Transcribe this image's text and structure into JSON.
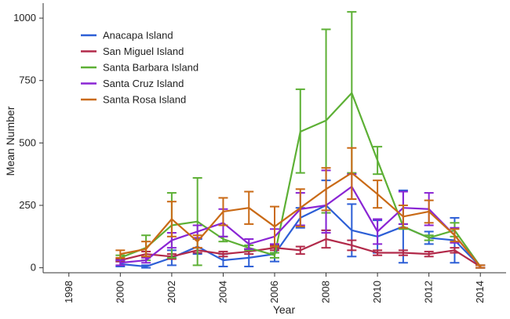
{
  "chart_data": {
    "type": "line",
    "xlabel": "Year",
    "ylabel": "Mean Number",
    "xlim": [
      1997,
      2015
    ],
    "ylim": [
      -20,
      1060
    ],
    "x_ticks": [
      1998,
      2000,
      2002,
      2004,
      2006,
      2008,
      2010,
      2012,
      2014
    ],
    "y_ticks": [
      0,
      250,
      500,
      750,
      1000
    ],
    "x_tick_labels": [
      "1998",
      "2000",
      "2002",
      "2004",
      "2006",
      "2008",
      "2010",
      "2012",
      "2014"
    ],
    "y_tick_labels": [
      "0",
      "250",
      "500",
      "750",
      "1000"
    ],
    "grid": false,
    "legend_position": "top-left",
    "error_bars": true,
    "series": [
      {
        "name": "Anacapa Island",
        "color": "#2d5fd6",
        "x": [
          2000,
          2001,
          2002,
          2003,
          2004,
          2005,
          2006,
          2007,
          2008,
          2009,
          2010,
          2011,
          2012,
          2013,
          2014
        ],
        "y": [
          15,
          5,
          40,
          85,
          30,
          40,
          55,
          200,
          250,
          150,
          125,
          165,
          120,
          110,
          5
        ],
        "y_low": [
          5,
          0,
          10,
          55,
          5,
          5,
          25,
          160,
          150,
          45,
          60,
          20,
          95,
          20,
          0
        ],
        "y_high": [
          25,
          10,
          70,
          115,
          55,
          75,
          85,
          240,
          350,
          255,
          190,
          310,
          145,
          200,
          10
        ]
      },
      {
        "name": "San Miguel Island",
        "color": "#b22a4a",
        "x": [
          2000,
          2001,
          2002,
          2003,
          2004,
          2005,
          2006,
          2007,
          2008,
          2009,
          2010,
          2011,
          2012,
          2013,
          2014
        ],
        "y": [
          30,
          55,
          45,
          70,
          55,
          65,
          80,
          70,
          115,
          90,
          60,
          60,
          55,
          70,
          5
        ],
        "y_low": [
          25,
          45,
          35,
          60,
          45,
          55,
          70,
          55,
          80,
          70,
          50,
          50,
          45,
          60,
          0
        ],
        "y_high": [
          35,
          65,
          55,
          80,
          65,
          75,
          90,
          85,
          150,
          110,
          70,
          70,
          65,
          80,
          10
        ]
      },
      {
        "name": "Santa Barbara Island",
        "color": "#5db035",
        "x": [
          2000,
          2001,
          2002,
          2003,
          2004,
          2005,
          2006,
          2007,
          2008,
          2009,
          2010,
          2011,
          2012,
          2013,
          2014
        ],
        "y": [
          40,
          80,
          170,
          185,
          115,
          80,
          50,
          545,
          590,
          700,
          430,
          165,
          120,
          150,
          5
        ],
        "y_low": [
          30,
          30,
          40,
          10,
          105,
          70,
          40,
          380,
          220,
          380,
          375,
          155,
          110,
          125,
          0
        ],
        "y_high": [
          50,
          130,
          300,
          360,
          125,
          90,
          60,
          715,
          955,
          1025,
          485,
          175,
          130,
          180,
          10
        ]
      },
      {
        "name": "Santa Cruz Island",
        "color": "#8a25d4",
        "x": [
          2000,
          2001,
          2002,
          2003,
          2004,
          2005,
          2006,
          2007,
          2008,
          2009,
          2010,
          2011,
          2012,
          2013,
          2014
        ],
        "y": [
          20,
          30,
          110,
          145,
          180,
          95,
          125,
          235,
          250,
          325,
          145,
          240,
          235,
          130,
          5
        ],
        "y_low": [
          10,
          20,
          80,
          120,
          125,
          75,
          95,
          170,
          140,
          275,
          95,
          175,
          170,
          100,
          0
        ],
        "y_high": [
          30,
          40,
          140,
          170,
          235,
          115,
          155,
          300,
          390,
          375,
          195,
          305,
          300,
          160,
          10
        ]
      },
      {
        "name": "Santa Rosa Island",
        "color": "#c96a16",
        "x": [
          2000,
          2001,
          2002,
          2003,
          2004,
          2005,
          2006,
          2007,
          2008,
          2009,
          2010,
          2011,
          2012,
          2013,
          2014
        ],
        "y": [
          55,
          75,
          195,
          105,
          225,
          240,
          165,
          240,
          315,
          380,
          295,
          205,
          225,
          130,
          5
        ],
        "y_low": [
          40,
          45,
          125,
          80,
          170,
          175,
          85,
          165,
          230,
          275,
          240,
          160,
          180,
          105,
          0
        ],
        "y_high": [
          70,
          105,
          265,
          130,
          280,
          305,
          245,
          315,
          400,
          480,
          350,
          250,
          270,
          155,
          10
        ]
      }
    ]
  }
}
